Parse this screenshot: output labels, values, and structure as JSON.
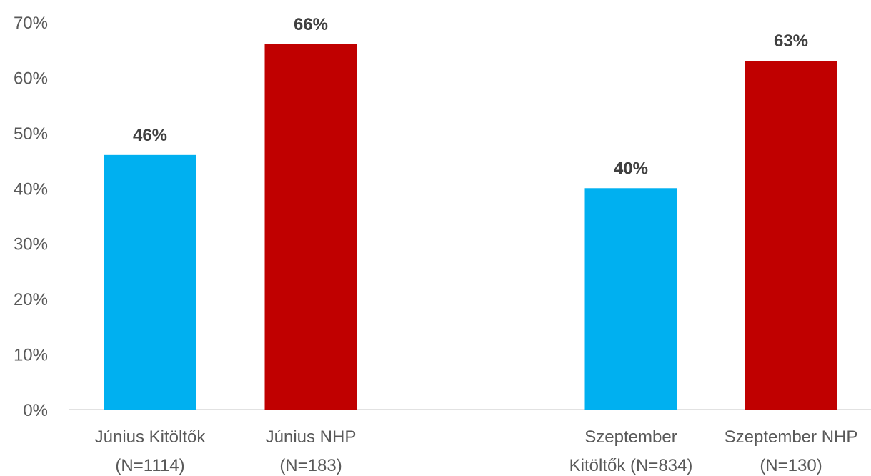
{
  "chart_data": {
    "type": "bar",
    "title": "",
    "xlabel": "",
    "ylabel": "",
    "ylim": [
      0,
      70
    ],
    "yticks": [
      "0%",
      "10%",
      "20%",
      "30%",
      "40%",
      "50%",
      "60%",
      "70%"
    ],
    "grid": false,
    "legend": "none",
    "categories": [
      [
        "Június Kitöltők",
        "(N=1114)"
      ],
      [
        "Június NHP",
        "(N=183)"
      ],
      [
        "Szeptember",
        "Kitöltők (N=834)"
      ],
      [
        "Szeptember NHP",
        "(N=130)"
      ]
    ],
    "values": [
      46,
      66,
      40,
      63
    ],
    "data_labels": [
      "46%",
      "66%",
      "40%",
      "63%"
    ],
    "colors": [
      "#00b0f0",
      "#c00000",
      "#00b0f0",
      "#c00000"
    ]
  }
}
